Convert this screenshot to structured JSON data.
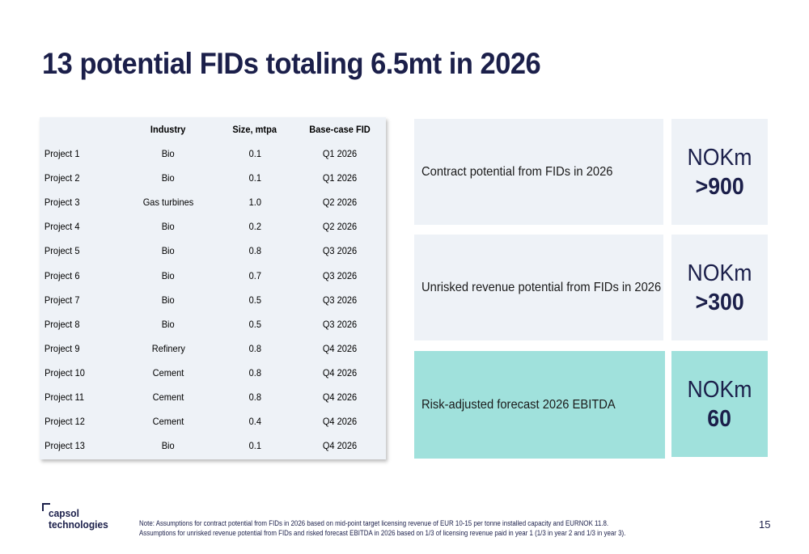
{
  "title": "13 potential FIDs totaling 6.5mt in 2026",
  "table": {
    "headers": [
      "",
      "Industry",
      "Size, mtpa",
      "Base-case FID"
    ],
    "rows": [
      {
        "project": "Project 1",
        "industry": "Bio",
        "size": "0.1",
        "fid": "Q1 2026"
      },
      {
        "project": "Project 2",
        "industry": "Bio",
        "size": "0.1",
        "fid": "Q1 2026"
      },
      {
        "project": "Project 3",
        "industry": "Gas turbines",
        "size": "1.0",
        "fid": "Q2 2026"
      },
      {
        "project": "Project 4",
        "industry": "Bio",
        "size": "0.2",
        "fid": "Q2 2026"
      },
      {
        "project": "Project 5",
        "industry": "Bio",
        "size": "0.8",
        "fid": "Q3 2026"
      },
      {
        "project": "Project 6",
        "industry": "Bio",
        "size": "0.7",
        "fid": "Q3 2026"
      },
      {
        "project": "Project 7",
        "industry": "Bio",
        "size": "0.5",
        "fid": "Q3 2026"
      },
      {
        "project": "Project 8",
        "industry": "Bio",
        "size": "0.5",
        "fid": "Q3 2026"
      },
      {
        "project": "Project 9",
        "industry": "Refinery",
        "size": "0.8",
        "fid": "Q4 2026"
      },
      {
        "project": "Project 10",
        "industry": "Cement",
        "size": "0.8",
        "fid": "Q4 2026"
      },
      {
        "project": "Project 11",
        "industry": "Cement",
        "size": "0.8",
        "fid": "Q4 2026"
      },
      {
        "project": "Project 12",
        "industry": "Cement",
        "size": "0.4",
        "fid": "Q4 2026"
      },
      {
        "project": "Project 13",
        "industry": "Bio",
        "size": "0.1",
        "fid": "Q4 2026"
      }
    ]
  },
  "metrics": [
    {
      "label": "Contract potential from FIDs in 2026",
      "unit": "NOKm",
      "value": ">900"
    },
    {
      "label": "Unrisked revenue potential from FIDs in 2026",
      "unit": "NOKm",
      "value": ">300"
    },
    {
      "label": "Risk-adjusted forecast 2026 EBITDA",
      "unit": "NOKm",
      "value": "60"
    }
  ],
  "logo": {
    "line1": "capsol",
    "line2": "technologies"
  },
  "note": {
    "line1": "Note: Assumptions for contract potential from FIDs in 2026 based on mid-point target licensing revenue of EUR 10-15 per tonne installed capacity and EURNOK 11.8.",
    "line2": "Assumptions for unrisked revenue potential from FIDs and risked forecast EBITDA in 2026 based on 1/3 of licensing revenue paid in year 1 (1/3 in year 2 and 1/3 in year 3)."
  },
  "page_number": "15",
  "colors": {
    "navy": "#1b1f4a",
    "panel": "#eef2f7",
    "teal": "#a0e1dc"
  }
}
